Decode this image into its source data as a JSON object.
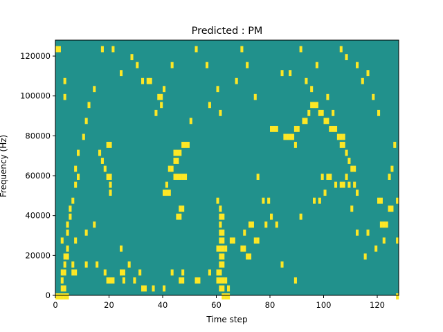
{
  "chart_data": {
    "type": "heatmap",
    "title": "Predicted : PM",
    "xlabel": "Time step",
    "ylabel": "Frequency (Hz)",
    "xlim": [
      0,
      128
    ],
    "ylim": [
      0,
      128000
    ],
    "x_ticks": [
      0,
      20,
      40,
      60,
      80,
      100,
      120
    ],
    "x_tick_labels": [
      "0",
      "20",
      "40",
      "60",
      "80",
      "100",
      "120"
    ],
    "y_ticks": [
      0,
      20000,
      40000,
      60000,
      80000,
      100000,
      120000
    ],
    "y_tick_labels": [
      "0",
      "20000",
      "40000",
      "60000",
      "80000",
      "100000",
      "120000"
    ],
    "grid": false,
    "colormap": "viridis",
    "value_levels": [
      -1,
      0,
      1
    ],
    "colors": {
      "-1": "#440154",
      "0": "#21918c",
      "1": "#fde725"
    },
    "background_value": 0,
    "yellow_cells": [
      [
        0,
        0
      ],
      [
        1,
        0
      ],
      [
        2,
        0
      ],
      [
        3,
        0
      ],
      [
        4,
        0
      ],
      [
        2,
        4
      ],
      [
        3,
        4
      ],
      [
        2,
        8
      ],
      [
        2,
        12
      ],
      [
        3,
        12
      ],
      [
        6,
        12
      ],
      [
        7,
        12
      ],
      [
        6,
        16
      ],
      [
        11,
        16
      ],
      [
        15,
        16
      ],
      [
        3,
        20
      ],
      [
        4,
        20
      ],
      [
        2,
        28
      ],
      [
        7,
        28
      ],
      [
        11,
        32
      ],
      [
        14,
        36
      ],
      [
        19,
        8
      ],
      [
        20,
        8
      ],
      [
        21,
        8
      ],
      [
        18,
        12
      ],
      [
        24,
        12
      ],
      [
        25,
        12
      ],
      [
        24,
        24
      ],
      [
        27,
        16
      ],
      [
        29,
        8
      ],
      [
        32,
        4
      ],
      [
        33,
        4
      ],
      [
        31,
        12
      ],
      [
        25,
        8
      ],
      [
        36,
        4
      ],
      [
        40,
        4
      ],
      [
        43,
        12
      ],
      [
        46,
        8
      ],
      [
        47,
        8
      ],
      [
        47,
        12
      ],
      [
        45,
        40
      ],
      [
        46,
        40
      ],
      [
        46,
        44
      ],
      [
        47,
        44
      ],
      [
        52,
        8
      ],
      [
        53,
        8
      ],
      [
        57,
        12
      ],
      [
        60,
        12
      ],
      [
        61,
        12
      ],
      [
        60,
        8
      ],
      [
        61,
        8
      ],
      [
        62,
        8
      ],
      [
        61,
        4
      ],
      [
        62,
        4
      ],
      [
        62,
        0
      ],
      [
        63,
        0
      ],
      [
        64,
        0
      ],
      [
        63,
        8
      ],
      [
        64,
        4
      ],
      [
        61,
        16
      ],
      [
        62,
        16
      ],
      [
        61,
        20
      ],
      [
        62,
        20
      ],
      [
        60,
        24
      ],
      [
        61,
        24
      ],
      [
        62,
        24
      ],
      [
        63,
        24
      ],
      [
        61,
        32
      ],
      [
        62,
        32
      ],
      [
        61,
        28
      ],
      [
        62,
        28
      ],
      [
        61,
        36
      ],
      [
        61,
        40
      ],
      [
        62,
        40
      ],
      [
        60,
        48
      ],
      [
        61,
        44
      ],
      [
        65,
        28
      ],
      [
        66,
        28
      ],
      [
        69,
        24
      ],
      [
        70,
        24
      ],
      [
        71,
        20
      ],
      [
        72,
        20
      ],
      [
        70,
        32
      ],
      [
        72,
        36
      ],
      [
        73,
        36
      ],
      [
        74,
        28
      ],
      [
        75,
        28
      ],
      [
        75,
        60
      ],
      [
        78,
        36
      ],
      [
        79,
        48
      ],
      [
        80,
        40
      ],
      [
        82,
        36
      ],
      [
        84,
        16
      ],
      [
        89,
        8
      ],
      [
        91,
        40
      ],
      [
        96,
        48
      ],
      [
        98,
        48
      ],
      [
        100,
        52
      ],
      [
        99,
        60
      ],
      [
        101,
        60
      ],
      [
        102,
        60
      ],
      [
        104,
        56
      ],
      [
        106,
        56
      ],
      [
        107,
        56
      ],
      [
        106,
        80
      ],
      [
        107,
        80
      ],
      [
        108,
        60
      ],
      [
        109,
        56
      ],
      [
        111,
        56
      ],
      [
        112,
        52
      ],
      [
        110,
        44
      ],
      [
        112,
        32
      ],
      [
        115,
        20
      ],
      [
        116,
        32
      ],
      [
        119,
        24
      ],
      [
        120,
        48
      ],
      [
        121,
        48
      ],
      [
        121,
        36
      ],
      [
        122,
        36
      ],
      [
        123,
        36
      ],
      [
        122,
        28
      ],
      [
        124,
        44
      ],
      [
        125,
        44
      ],
      [
        124,
        60
      ],
      [
        127,
        0
      ],
      [
        127,
        28
      ],
      [
        127,
        48
      ],
      [
        125,
        64
      ],
      [
        126,
        76
      ],
      [
        120,
        92
      ],
      [
        118,
        100
      ],
      [
        116,
        112
      ],
      [
        114,
        108
      ],
      [
        112,
        116
      ],
      [
        108,
        120
      ],
      [
        106,
        124
      ],
      [
        103,
        92
      ],
      [
        101,
        100
      ],
      [
        97,
        116
      ],
      [
        95,
        104
      ],
      [
        93,
        108
      ],
      [
        91,
        124
      ],
      [
        89,
        76
      ],
      [
        87,
        112
      ],
      [
        84,
        112
      ],
      [
        77,
        48
      ],
      [
        74,
        100
      ],
      [
        71,
        116
      ],
      [
        69,
        124
      ],
      [
        67,
        108
      ],
      [
        61,
        92
      ],
      [
        60,
        104
      ],
      [
        57,
        96
      ],
      [
        56,
        116
      ],
      [
        52,
        124
      ],
      [
        50,
        88
      ],
      [
        43,
        116
      ],
      [
        40,
        104
      ],
      [
        37,
        92
      ],
      [
        32,
        108
      ],
      [
        30,
        116
      ],
      [
        28,
        120
      ],
      [
        24,
        112
      ],
      [
        21,
        124
      ],
      [
        17,
        124
      ],
      [
        14,
        104
      ],
      [
        12,
        96
      ],
      [
        11,
        88
      ],
      [
        10,
        80
      ],
      [
        8,
        60
      ],
      [
        8,
        72
      ],
      [
        7,
        64
      ],
      [
        7,
        56
      ],
      [
        6,
        48
      ],
      [
        5,
        44
      ],
      [
        5,
        40
      ],
      [
        4,
        36
      ],
      [
        4,
        32
      ],
      [
        4,
        24
      ],
      [
        4,
        20
      ],
      [
        3,
        16
      ],
      [
        3,
        100
      ],
      [
        3,
        108
      ],
      [
        0,
        124
      ],
      [
        1,
        124
      ],
      [
        34,
        108
      ],
      [
        35,
        108
      ],
      [
        38,
        100
      ],
      [
        39,
        100
      ],
      [
        39,
        96
      ],
      [
        20,
        52
      ],
      [
        20,
        56
      ],
      [
        20,
        60
      ],
      [
        19,
        60
      ],
      [
        18,
        64
      ],
      [
        17,
        68
      ],
      [
        16,
        72
      ],
      [
        19,
        76
      ],
      [
        20,
        76
      ],
      [
        40,
        52
      ],
      [
        41,
        52
      ],
      [
        42,
        52
      ],
      [
        41,
        56
      ],
      [
        44,
        60
      ],
      [
        45,
        60
      ],
      [
        46,
        60
      ],
      [
        47,
        60
      ],
      [
        48,
        60
      ],
      [
        44,
        68
      ],
      [
        45,
        68
      ],
      [
        42,
        64
      ],
      [
        43,
        64
      ],
      [
        44,
        72
      ],
      [
        45,
        72
      ],
      [
        46,
        72
      ],
      [
        47,
        76
      ],
      [
        48,
        76
      ],
      [
        49,
        76
      ],
      [
        80,
        84
      ],
      [
        81,
        84
      ],
      [
        82,
        84
      ],
      [
        85,
        80
      ],
      [
        86,
        80
      ],
      [
        87,
        80
      ],
      [
        88,
        80
      ],
      [
        89,
        84
      ],
      [
        90,
        84
      ],
      [
        92,
        88
      ],
      [
        93,
        88
      ],
      [
        94,
        92
      ],
      [
        95,
        96
      ],
      [
        96,
        96
      ],
      [
        97,
        96
      ],
      [
        98,
        92
      ],
      [
        99,
        92
      ],
      [
        100,
        88
      ],
      [
        101,
        88
      ],
      [
        102,
        84
      ],
      [
        103,
        84
      ],
      [
        104,
        84
      ],
      [
        105,
        80
      ],
      [
        106,
        76
      ],
      [
        107,
        76
      ],
      [
        108,
        72
      ],
      [
        109,
        68
      ],
      [
        110,
        64
      ],
      [
        111,
        64
      ]
    ]
  }
}
